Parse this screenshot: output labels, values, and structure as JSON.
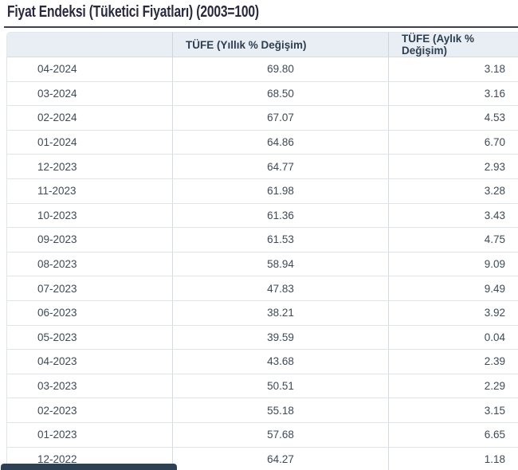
{
  "page": {
    "title": "Fiyat Endeksi (Tüketici Fiyatları) (2003=100)"
  },
  "table": {
    "columns": [
      "",
      "TÜFE (Yıllık % Değişim)",
      "TÜFE (Aylık % Değişim)"
    ],
    "rows": [
      {
        "period": "04-2024",
        "yearly": "69.80",
        "monthly": "3.18"
      },
      {
        "period": "03-2024",
        "yearly": "68.50",
        "monthly": "3.16"
      },
      {
        "period": "02-2024",
        "yearly": "67.07",
        "monthly": "4.53"
      },
      {
        "period": "01-2024",
        "yearly": "64.86",
        "monthly": "6.70"
      },
      {
        "period": "12-2023",
        "yearly": "64.77",
        "monthly": "2.93"
      },
      {
        "period": "11-2023",
        "yearly": "61.98",
        "monthly": "3.28"
      },
      {
        "period": "10-2023",
        "yearly": "61.36",
        "monthly": "3.43"
      },
      {
        "period": "09-2023",
        "yearly": "61.53",
        "monthly": "4.75"
      },
      {
        "period": "08-2023",
        "yearly": "58.94",
        "monthly": "9.09"
      },
      {
        "period": "07-2023",
        "yearly": "47.83",
        "monthly": "9.49"
      },
      {
        "period": "06-2023",
        "yearly": "38.21",
        "monthly": "3.92"
      },
      {
        "period": "05-2023",
        "yearly": "39.59",
        "monthly": "0.04"
      },
      {
        "period": "04-2023",
        "yearly": "43.68",
        "monthly": "2.39"
      },
      {
        "period": "03-2023",
        "yearly": "50.51",
        "monthly": "2.29"
      },
      {
        "period": "02-2023",
        "yearly": "55.18",
        "monthly": "3.15"
      },
      {
        "period": "01-2023",
        "yearly": "57.68",
        "monthly": "6.65"
      },
      {
        "period": "12-2022",
        "yearly": "64.27",
        "monthly": "1.18"
      }
    ]
  },
  "colors": {
    "title_text": "#28283f",
    "title_rule": "#3e3e58",
    "header_bg": "#e9eef4",
    "header_text": "#2c3e50",
    "cell_text": "#3e4a57",
    "row_border": "#dfe3ea",
    "column_border": "#d6dce5",
    "cutoff_bar": "#2e4053"
  }
}
